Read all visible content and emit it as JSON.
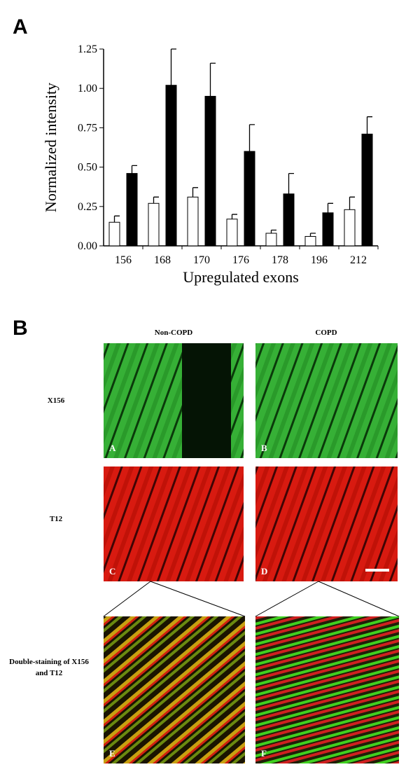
{
  "chart_data": {
    "type": "bar",
    "panel_label": "A",
    "ylabel": "Normalized intensity",
    "xlabel": "Upregulated exons",
    "categories": [
      "156",
      "168",
      "170",
      "176",
      "178",
      "196",
      "212"
    ],
    "series": [
      {
        "color": "#ffffff",
        "values": [
          0.15,
          0.27,
          0.31,
          0.17,
          0.08,
          0.06,
          0.23
        ],
        "errors": [
          0.04,
          0.04,
          0.06,
          0.03,
          0.02,
          0.02,
          0.08
        ]
      },
      {
        "color": "#000000",
        "values": [
          0.46,
          1.02,
          0.95,
          0.6,
          0.33,
          0.21,
          0.71
        ],
        "errors": [
          0.05,
          0.23,
          0.21,
          0.17,
          0.13,
          0.06,
          0.11
        ]
      }
    ],
    "ylim": [
      0,
      1.25
    ],
    "yticks": [
      {
        "value": 0,
        "label": "0.00"
      },
      {
        "value": 0.25,
        "label": "0.25"
      },
      {
        "value": 0.5,
        "label": "0.50"
      },
      {
        "value": 0.75,
        "label": "0.75"
      },
      {
        "value": 1,
        "label": "1.00"
      },
      {
        "value": 1.25,
        "label": "1.25"
      }
    ]
  },
  "panel_b": {
    "panel_label": "B",
    "columns": [
      "Non-COPD",
      "COPD"
    ],
    "rows": [
      "X156",
      "T12",
      "Double-staining of X156 and T12"
    ],
    "images": [
      "A",
      "B",
      "C",
      "D",
      "E",
      "F"
    ]
  }
}
